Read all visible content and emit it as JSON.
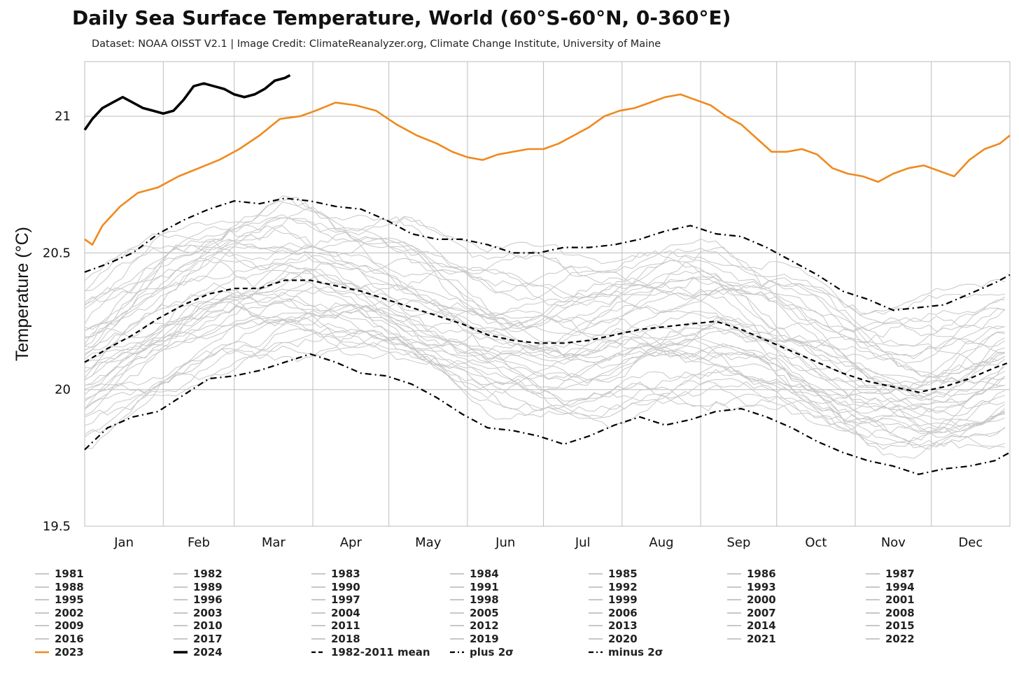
{
  "chart_data": {
    "type": "line",
    "title": "Daily Sea Surface Temperature, World (60°S-60°N, 0-360°E)",
    "subtitle": "Dataset: NOAA OISST V2.1 | Image Credit: ClimateReanalyzer.org, Climate Change Institute, University of Maine",
    "ylabel": "Temperature (°C)",
    "xlabel": "",
    "ylim": [
      19.5,
      21.2
    ],
    "yticks": [
      19.5,
      20,
      20.5,
      21
    ],
    "ytick_labels": [
      "19.5",
      "20",
      "20.5",
      "21"
    ],
    "months": [
      "Jan",
      "Feb",
      "Mar",
      "Apr",
      "May",
      "Jun",
      "Jul",
      "Aug",
      "Sep",
      "Oct",
      "Nov",
      "Dec"
    ],
    "grid": true,
    "legend_placement": "bottom",
    "colors": {
      "historical": "#c8c8c8",
      "y2023": "#f0891c",
      "y2024": "#000000",
      "stats": "#000000"
    },
    "historical_years": [
      "1981",
      "1982",
      "1983",
      "1984",
      "1985",
      "1986",
      "1987",
      "1988",
      "1989",
      "1990",
      "1991",
      "1992",
      "1993",
      "1994",
      "1995",
      "1996",
      "1997",
      "1998",
      "1999",
      "2000",
      "2001",
      "2002",
      "2003",
      "2004",
      "2005",
      "2006",
      "2007",
      "2008",
      "2009",
      "2010",
      "2011",
      "2012",
      "2013",
      "2014",
      "2015",
      "2016",
      "2017",
      "2018",
      "2019",
      "2020",
      "2021",
      "2022"
    ],
    "series": [
      {
        "name": "2023",
        "points": [
          [
            1,
            20.55
          ],
          [
            4,
            20.53
          ],
          [
            8,
            20.6
          ],
          [
            15,
            20.67
          ],
          [
            22,
            20.72
          ],
          [
            30,
            20.74
          ],
          [
            38,
            20.78
          ],
          [
            46,
            20.81
          ],
          [
            54,
            20.84
          ],
          [
            62,
            20.88
          ],
          [
            70,
            20.93
          ],
          [
            78,
            20.99
          ],
          [
            86,
            21.0
          ],
          [
            92,
            21.02
          ],
          [
            100,
            21.05
          ],
          [
            108,
            21.04
          ],
          [
            116,
            21.02
          ],
          [
            124,
            20.97
          ],
          [
            132,
            20.93
          ],
          [
            140,
            20.9
          ],
          [
            146,
            20.87
          ],
          [
            152,
            20.85
          ],
          [
            158,
            20.84
          ],
          [
            164,
            20.86
          ],
          [
            170,
            20.87
          ],
          [
            176,
            20.88
          ],
          [
            182,
            20.88
          ],
          [
            188,
            20.9
          ],
          [
            194,
            20.93
          ],
          [
            200,
            20.96
          ],
          [
            206,
            21.0
          ],
          [
            212,
            21.02
          ],
          [
            218,
            21.03
          ],
          [
            224,
            21.05
          ],
          [
            230,
            21.07
          ],
          [
            236,
            21.08
          ],
          [
            242,
            21.06
          ],
          [
            248,
            21.04
          ],
          [
            254,
            21.0
          ],
          [
            260,
            20.97
          ],
          [
            266,
            20.92
          ],
          [
            272,
            20.87
          ],
          [
            278,
            20.87
          ],
          [
            284,
            20.88
          ],
          [
            290,
            20.86
          ],
          [
            296,
            20.81
          ],
          [
            302,
            20.79
          ],
          [
            308,
            20.78
          ],
          [
            314,
            20.76
          ],
          [
            320,
            20.79
          ],
          [
            326,
            20.81
          ],
          [
            332,
            20.82
          ],
          [
            338,
            20.8
          ],
          [
            344,
            20.78
          ],
          [
            350,
            20.84
          ],
          [
            356,
            20.88
          ],
          [
            362,
            20.9
          ],
          [
            366,
            20.93
          ]
        ]
      },
      {
        "name": "2024",
        "points": [
          [
            1,
            20.95
          ],
          [
            4,
            20.99
          ],
          [
            8,
            21.03
          ],
          [
            12,
            21.05
          ],
          [
            16,
            21.07
          ],
          [
            20,
            21.05
          ],
          [
            24,
            21.03
          ],
          [
            28,
            21.02
          ],
          [
            32,
            21.01
          ],
          [
            36,
            21.02
          ],
          [
            40,
            21.06
          ],
          [
            44,
            21.11
          ],
          [
            48,
            21.12
          ],
          [
            52,
            21.11
          ],
          [
            56,
            21.1
          ],
          [
            60,
            21.08
          ],
          [
            64,
            21.07
          ],
          [
            68,
            21.08
          ],
          [
            72,
            21.1
          ],
          [
            76,
            21.13
          ],
          [
            80,
            21.14
          ],
          [
            82,
            21.15
          ]
        ]
      },
      {
        "name": "1982-2011 mean",
        "points": [
          [
            1,
            20.1
          ],
          [
            10,
            20.15
          ],
          [
            20,
            20.2
          ],
          [
            30,
            20.26
          ],
          [
            40,
            20.31
          ],
          [
            50,
            20.35
          ],
          [
            60,
            20.37
          ],
          [
            70,
            20.37
          ],
          [
            80,
            20.4
          ],
          [
            90,
            20.4
          ],
          [
            100,
            20.38
          ],
          [
            110,
            20.36
          ],
          [
            120,
            20.33
          ],
          [
            130,
            20.3
          ],
          [
            140,
            20.27
          ],
          [
            150,
            20.24
          ],
          [
            160,
            20.2
          ],
          [
            170,
            20.18
          ],
          [
            180,
            20.17
          ],
          [
            190,
            20.17
          ],
          [
            200,
            20.18
          ],
          [
            210,
            20.2
          ],
          [
            220,
            20.22
          ],
          [
            230,
            20.23
          ],
          [
            240,
            20.24
          ],
          [
            250,
            20.25
          ],
          [
            260,
            20.22
          ],
          [
            270,
            20.18
          ],
          [
            280,
            20.14
          ],
          [
            290,
            20.1
          ],
          [
            300,
            20.06
          ],
          [
            310,
            20.03
          ],
          [
            320,
            20.01
          ],
          [
            330,
            19.99
          ],
          [
            340,
            20.01
          ],
          [
            350,
            20.04
          ],
          [
            360,
            20.08
          ],
          [
            366,
            20.1
          ]
        ]
      },
      {
        "name": "plus 2σ",
        "points": [
          [
            1,
            20.43
          ],
          [
            10,
            20.46
          ],
          [
            20,
            20.5
          ],
          [
            30,
            20.57
          ],
          [
            40,
            20.62
          ],
          [
            50,
            20.66
          ],
          [
            60,
            20.69
          ],
          [
            70,
            20.68
          ],
          [
            80,
            20.7
          ],
          [
            90,
            20.69
          ],
          [
            100,
            20.67
          ],
          [
            110,
            20.66
          ],
          [
            120,
            20.62
          ],
          [
            130,
            20.57
          ],
          [
            140,
            20.55
          ],
          [
            150,
            20.55
          ],
          [
            160,
            20.53
          ],
          [
            170,
            20.5
          ],
          [
            180,
            20.5
          ],
          [
            190,
            20.52
          ],
          [
            200,
            20.52
          ],
          [
            210,
            20.53
          ],
          [
            220,
            20.55
          ],
          [
            230,
            20.58
          ],
          [
            240,
            20.6
          ],
          [
            250,
            20.57
          ],
          [
            260,
            20.56
          ],
          [
            270,
            20.52
          ],
          [
            280,
            20.47
          ],
          [
            290,
            20.42
          ],
          [
            300,
            20.36
          ],
          [
            310,
            20.33
          ],
          [
            320,
            20.29
          ],
          [
            330,
            20.3
          ],
          [
            340,
            20.31
          ],
          [
            350,
            20.35
          ],
          [
            360,
            20.39
          ],
          [
            366,
            20.42
          ]
        ]
      },
      {
        "name": "minus 2σ",
        "points": [
          [
            1,
            19.78
          ],
          [
            10,
            19.86
          ],
          [
            20,
            19.9
          ],
          [
            30,
            19.92
          ],
          [
            40,
            19.98
          ],
          [
            50,
            20.04
          ],
          [
            60,
            20.05
          ],
          [
            70,
            20.07
          ],
          [
            80,
            20.1
          ],
          [
            90,
            20.13
          ],
          [
            100,
            20.1
          ],
          [
            110,
            20.06
          ],
          [
            120,
            20.05
          ],
          [
            130,
            20.02
          ],
          [
            140,
            19.97
          ],
          [
            150,
            19.91
          ],
          [
            160,
            19.86
          ],
          [
            170,
            19.85
          ],
          [
            180,
            19.83
          ],
          [
            190,
            19.8
          ],
          [
            200,
            19.83
          ],
          [
            210,
            19.87
          ],
          [
            220,
            19.9
          ],
          [
            230,
            19.87
          ],
          [
            240,
            19.89
          ],
          [
            250,
            19.92
          ],
          [
            260,
            19.93
          ],
          [
            270,
            19.9
          ],
          [
            280,
            19.86
          ],
          [
            290,
            19.81
          ],
          [
            300,
            19.77
          ],
          [
            310,
            19.74
          ],
          [
            320,
            19.72
          ],
          [
            330,
            19.69
          ],
          [
            340,
            19.71
          ],
          [
            350,
            19.72
          ],
          [
            360,
            19.74
          ],
          [
            366,
            19.77
          ]
        ]
      }
    ],
    "legend": {
      "year_columns": [
        [
          "1981",
          "1988",
          "1995",
          "2002",
          "2009",
          "2016"
        ],
        [
          "1982",
          "1989",
          "1996",
          "2003",
          "2010",
          "2017"
        ],
        [
          "1983",
          "1990",
          "1997",
          "2004",
          "2011",
          "2018"
        ],
        [
          "1984",
          "1991",
          "1998",
          "2005",
          "2012",
          "2019"
        ],
        [
          "1985",
          "1992",
          "1999",
          "2006",
          "2013",
          "2020"
        ],
        [
          "1986",
          "1993",
          "2000",
          "2007",
          "2014",
          "2021"
        ],
        [
          "1987",
          "1994",
          "2001",
          "2008",
          "2015",
          "2022"
        ]
      ],
      "special": [
        {
          "label": "2023",
          "style": "orange"
        },
        {
          "label": "2024",
          "style": "black"
        },
        {
          "label": "1982-2011 mean",
          "style": "dash"
        },
        {
          "label": "plus 2σ",
          "style": "dashdot"
        },
        {
          "label": "minus 2σ",
          "style": "dashdot"
        }
      ]
    }
  }
}
